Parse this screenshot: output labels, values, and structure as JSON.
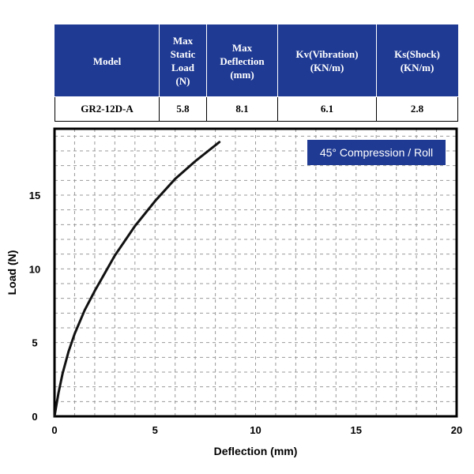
{
  "spec_table": {
    "headers": [
      [
        "Model"
      ],
      [
        "Max",
        "Static",
        "Load",
        "(N)"
      ],
      [
        "Max",
        "Deflection",
        "(mm)"
      ],
      [
        "Kv(Vibration)",
        "(KN/m)"
      ],
      [
        "Ks(Shock)",
        "(KN/m)"
      ]
    ],
    "row": [
      "GR2-12D-A",
      "5.8",
      "8.1",
      "6.1",
      "2.8"
    ]
  },
  "chart_data": {
    "type": "line",
    "title": "45° Compression / Roll",
    "xlabel": "Deflection (mm)",
    "ylabel": "Load (N)",
    "xlim": [
      0,
      20
    ],
    "ylim": [
      0,
      19.5
    ],
    "xticks": [
      "0",
      "5",
      "10",
      "15",
      "20"
    ],
    "yticks": [
      "0",
      "5",
      "10",
      "15"
    ],
    "grid": true,
    "series": [
      {
        "x": [
          0,
          0.1,
          0.2,
          0.4,
          0.7,
          1.0,
          1.5,
          2.0,
          3.0,
          4.0,
          5.0,
          6.0,
          7.0,
          8.2
        ],
        "y": [
          0,
          0.8,
          1.6,
          2.9,
          4.4,
          5.6,
          7.2,
          8.5,
          10.9,
          12.9,
          14.6,
          16.1,
          17.3,
          18.6
        ]
      }
    ],
    "colors": {
      "line": "#111111",
      "badge": "#1f3a93",
      "frame": "#000000",
      "grid": "#999999"
    }
  }
}
